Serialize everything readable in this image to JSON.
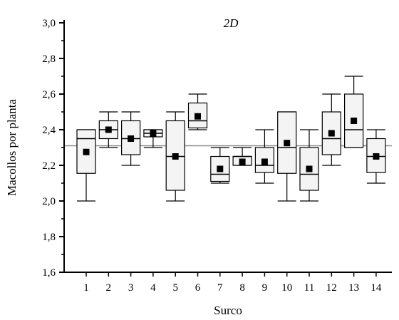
{
  "chart_data": {
    "type": "box",
    "annotation": "2D",
    "xlabel": "Surco",
    "ylabel": "Macollos por planta",
    "ylim": [
      1.6,
      3.0
    ],
    "yticks": [
      1.6,
      1.8,
      2.0,
      2.2,
      2.4,
      2.6,
      2.8,
      3.0
    ],
    "ytick_labels": [
      "1,6",
      "1,8",
      "2,0",
      "2,2",
      "2,4",
      "2,6",
      "2,8",
      "3,0"
    ],
    "reference_line": 2.31,
    "categories": [
      "1",
      "2",
      "3",
      "4",
      "5",
      "6",
      "7",
      "8",
      "9",
      "10",
      "11",
      "12",
      "13",
      "14"
    ],
    "boxes": [
      {
        "category": "1",
        "min": 2.0,
        "q1": 2.155,
        "median": 2.35,
        "q3": 2.4,
        "max": 2.4,
        "mean": 2.275
      },
      {
        "category": "2",
        "min": 2.3,
        "q1": 2.35,
        "median": 2.4,
        "q3": 2.45,
        "max": 2.5,
        "mean": 2.4
      },
      {
        "category": "3",
        "min": 2.2,
        "q1": 2.26,
        "median": 2.35,
        "q3": 2.45,
        "max": 2.5,
        "mean": 2.35
      },
      {
        "category": "4",
        "min": 2.3,
        "q1": 2.36,
        "median": 2.38,
        "q3": 2.4,
        "max": 2.4,
        "mean": 2.38
      },
      {
        "category": "5",
        "min": 2.0,
        "q1": 2.06,
        "median": 2.25,
        "q3": 2.45,
        "max": 2.5,
        "mean": 2.25
      },
      {
        "category": "6",
        "min": 2.4,
        "q1": 2.41,
        "median": 2.45,
        "q3": 2.55,
        "max": 2.6,
        "mean": 2.475
      },
      {
        "category": "7",
        "min": 2.1,
        "q1": 2.11,
        "median": 2.15,
        "q3": 2.25,
        "max": 2.3,
        "mean": 2.18
      },
      {
        "category": "8",
        "min": 2.2,
        "q1": 2.2,
        "median": 2.25,
        "q3": 2.25,
        "max": 2.3,
        "mean": 2.22
      },
      {
        "category": "9",
        "min": 2.1,
        "q1": 2.16,
        "median": 2.2,
        "q3": 2.3,
        "max": 2.4,
        "mean": 2.22
      },
      {
        "category": "10",
        "min": 2.0,
        "q1": 2.155,
        "median": 2.3,
        "q3": 2.5,
        "max": 2.5,
        "mean": 2.325
      },
      {
        "category": "11",
        "min": 2.0,
        "q1": 2.06,
        "median": 2.15,
        "q3": 2.3,
        "max": 2.4,
        "mean": 2.18
      },
      {
        "category": "12",
        "min": 2.2,
        "q1": 2.26,
        "median": 2.35,
        "q3": 2.5,
        "max": 2.6,
        "mean": 2.38
      },
      {
        "category": "13",
        "min": 2.3,
        "q1": 2.3,
        "median": 2.4,
        "q3": 2.6,
        "max": 2.7,
        "mean": 2.45
      },
      {
        "category": "14",
        "min": 2.1,
        "q1": 2.16,
        "median": 2.25,
        "q3": 2.35,
        "max": 2.4,
        "mean": 2.25
      }
    ],
    "grid": false,
    "legend": "none",
    "colors": {
      "box_fill": "#f4f4f4",
      "box_stroke": "#000000",
      "mean_marker": "#000000",
      "reference_line": "#8c8c8c"
    }
  }
}
